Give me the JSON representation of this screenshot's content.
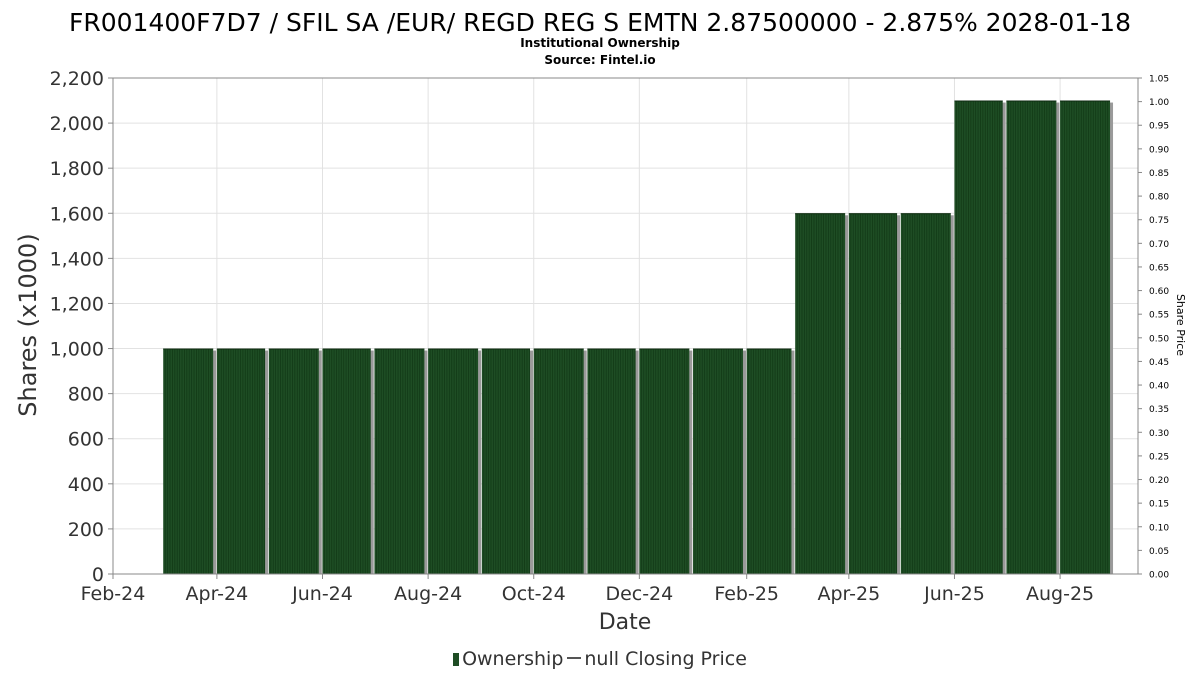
{
  "header": {
    "title": "FR001400F7D7 / SFIL SA /EUR/ REGD REG S EMTN 2.87500000 - 2.875% 2028-01-18",
    "subtitle_1": "Institutional Ownership",
    "subtitle_2": "Source: Fintel.io"
  },
  "legend": {
    "ownership_label": "Ownership",
    "price_label": "null Closing Price"
  },
  "chart_data": {
    "type": "bar",
    "xlabel": "Date",
    "ylabel": "Shares (x1000)",
    "y2label": "Share Price",
    "ylim": [
      0,
      2200
    ],
    "y2lim": [
      0,
      1.05
    ],
    "yticks": [
      0,
      200,
      400,
      600,
      800,
      1000,
      1200,
      1400,
      1600,
      1800,
      2000,
      2200
    ],
    "ytick_labels": [
      "0",
      "200",
      "400",
      "600",
      "800",
      "1,000",
      "1,200",
      "1,400",
      "1,600",
      "1,800",
      "2,000",
      "2,200"
    ],
    "y2ticks": [
      "0.00",
      "0.05",
      "0.10",
      "0.15",
      "0.20",
      "0.25",
      "0.30",
      "0.35",
      "0.40",
      "0.45",
      "0.50",
      "0.55",
      "0.60",
      "0.65",
      "0.70",
      "0.75",
      "0.80",
      "0.85",
      "0.90",
      "0.95",
      "1.00",
      "1.05"
    ],
    "xrange": [
      "2024-02-01",
      "2025-09-15"
    ],
    "xticks": [
      {
        "date": "2024-02-01",
        "label": "Feb-24"
      },
      {
        "date": "2024-04-01",
        "label": "Apr-24"
      },
      {
        "date": "2024-06-01",
        "label": "Jun-24"
      },
      {
        "date": "2024-08-01",
        "label": "Aug-24"
      },
      {
        "date": "2024-10-01",
        "label": "Oct-24"
      },
      {
        "date": "2024-12-01",
        "label": "Dec-24"
      },
      {
        "date": "2025-02-01",
        "label": "Feb-25"
      },
      {
        "date": "2025-04-01",
        "label": "Apr-25"
      },
      {
        "date": "2025-06-01",
        "label": "Jun-25"
      },
      {
        "date": "2025-08-01",
        "label": "Aug-25"
      }
    ],
    "grid": true,
    "legend_position": "bottom",
    "series": [
      {
        "name": "Ownership",
        "color": "#1e4d24",
        "bars": [
          {
            "start": "2024-03-01",
            "end": "2024-03-31",
            "value": 1000
          },
          {
            "start": "2024-04-01",
            "end": "2024-04-30",
            "value": 1000
          },
          {
            "start": "2024-05-01",
            "end": "2024-05-31",
            "value": 1000
          },
          {
            "start": "2024-06-01",
            "end": "2024-06-30",
            "value": 1000
          },
          {
            "start": "2024-07-01",
            "end": "2024-07-31",
            "value": 1000
          },
          {
            "start": "2024-08-01",
            "end": "2024-08-31",
            "value": 1000
          },
          {
            "start": "2024-09-01",
            "end": "2024-09-30",
            "value": 1000
          },
          {
            "start": "2024-10-01",
            "end": "2024-10-31",
            "value": 1000
          },
          {
            "start": "2024-11-01",
            "end": "2024-11-30",
            "value": 1000
          },
          {
            "start": "2024-12-01",
            "end": "2024-12-31",
            "value": 1000
          },
          {
            "start": "2025-01-01",
            "end": "2025-01-31",
            "value": 1000
          },
          {
            "start": "2025-02-01",
            "end": "2025-02-28",
            "value": 1000
          },
          {
            "start": "2025-03-01",
            "end": "2025-03-31",
            "value": 1600
          },
          {
            "start": "2025-04-01",
            "end": "2025-04-30",
            "value": 1600
          },
          {
            "start": "2025-05-01",
            "end": "2025-05-31",
            "value": 1600
          },
          {
            "start": "2025-06-01",
            "end": "2025-06-30",
            "value": 2100
          },
          {
            "start": "2025-07-01",
            "end": "2025-07-31",
            "value": 2100
          },
          {
            "start": "2025-08-01",
            "end": "2025-08-31",
            "value": 2100
          }
        ]
      },
      {
        "name": "null Closing Price",
        "color": "#555555",
        "values": []
      }
    ]
  }
}
